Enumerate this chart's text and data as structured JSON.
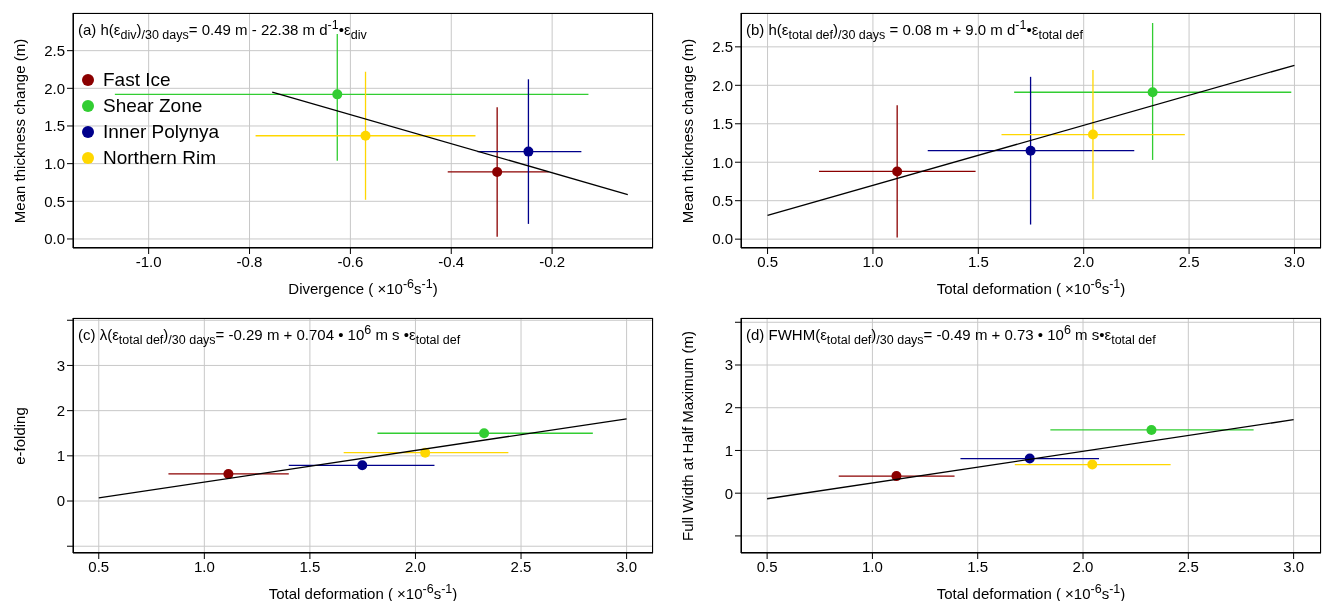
{
  "chart_data": [
    {
      "type": "scatter",
      "title": "(a) h(ε$_{div}$)$_{/30 days}$= 0.49 m - 22.38 m d$^{-1}$•ε$_{div}$",
      "xlabel": "Divergence ( ×10$^{-6}$s$^{-1}$)",
      "ylabel": "Mean thickness change (m)",
      "xlim": [
        -1.15,
        0.0
      ],
      "xticks": [
        {
          "value": -1,
          "label": "-1.0"
        },
        -0.8,
        -0.6,
        -0.4,
        -0.2
      ],
      "ylim": [
        -0.12,
        3.0
      ],
      "yticks": [
        {
          "value": 0,
          "label": "0.0"
        },
        0.5,
        {
          "value": 1,
          "label": "1.0"
        },
        1.5,
        {
          "value": 2,
          "label": "2.0"
        },
        2.5
      ],
      "grid": true,
      "legend": "left",
      "marker": "circle",
      "series": [
        {
          "name": "Fast Ice",
          "color": "#8b0000",
          "x": [
            -0.309
          ],
          "values": [
            0.89
          ],
          "errors": [
            [
              0.03,
              1.75
            ]
          ],
          "xerrors": [
            [
              -0.407,
              -0.207
            ]
          ]
        },
        {
          "name": "Shear Zone",
          "color": "#32cd32",
          "x": [
            -0.626
          ],
          "values": [
            1.92
          ],
          "errors": [
            [
              1.04,
              2.72
            ]
          ],
          "xerrors": [
            [
              -1.067,
              -0.128
            ]
          ]
        },
        {
          "name": "Inner Polynya",
          "color": "#00008b",
          "x": [
            -0.247
          ],
          "values": [
            1.16
          ],
          "errors": [
            [
              0.2,
              2.12
            ]
          ],
          "xerrors": [
            [
              -0.348,
              -0.142
            ]
          ]
        },
        {
          "name": "Northern Rim",
          "color": "#ffd700",
          "x": [
            -0.57
          ],
          "values": [
            1.37
          ],
          "errors": [
            [
              0.52,
              2.22
            ]
          ],
          "xerrors": [
            [
              -0.788,
              -0.352
            ]
          ]
        },
        {
          "type": "line",
          "color": "#000000",
          "x": [
            -0.755,
            -0.05
          ],
          "values": [
            1.95,
            0.59
          ],
          "marker": "none"
        }
      ]
    },
    {
      "type": "scatter",
      "title": "(b) h(ε$_{total def}$)$_{/30 days}$ = 0.08 m + 9.0 m d$^{-1}$•ε$_{total def}$",
      "xlabel": "Total deformation ( ×10$^{-6}$s$^{-1}$)",
      "ylabel": "Mean thickness change (m)",
      "xlim": [
        0.374,
        3.126
      ],
      "xticks": [
        0.5,
        {
          "value": 1,
          "label": "1.0"
        },
        1.5,
        {
          "value": 2,
          "label": "2.0"
        },
        2.5,
        {
          "value": 3,
          "label": "3.0"
        }
      ],
      "ylim": [
        -0.115,
        2.94
      ],
      "yticks": [
        {
          "value": 0,
          "label": "0.0"
        },
        0.5,
        {
          "value": 1,
          "label": "1.0"
        },
        1.5,
        {
          "value": 2,
          "label": "2.0"
        },
        2.5
      ],
      "grid": true,
      "marker": "circle",
      "series": [
        {
          "color": "#8b0000",
          "x": [
            1.115
          ],
          "values": [
            0.88
          ],
          "errors": [
            [
              0.02,
              1.74
            ]
          ],
          "xerrors": [
            [
              0.744,
              1.487
            ]
          ]
        },
        {
          "color": "#32cd32",
          "x": [
            2.327
          ],
          "values": [
            1.91
          ],
          "errors": [
            [
              1.03,
              2.81
            ]
          ],
          "xerrors": [
            [
              1.67,
              2.985
            ]
          ]
        },
        {
          "color": "#00008b",
          "x": [
            1.748
          ],
          "values": [
            1.15
          ],
          "errors": [
            [
              0.19,
              2.11
            ]
          ],
          "xerrors": [
            [
              1.26,
              2.24
            ]
          ]
        },
        {
          "color": "#ffd700",
          "x": [
            2.044
          ],
          "values": [
            1.36
          ],
          "errors": [
            [
              0.52,
              2.2
            ]
          ],
          "xerrors": [
            [
              1.61,
              2.48
            ]
          ]
        },
        {
          "type": "line",
          "color": "#000000",
          "x": [
            0.5,
            3.0
          ],
          "values": [
            0.31,
            2.26
          ],
          "marker": "none"
        }
      ]
    },
    {
      "type": "scatter",
      "title": "(c) λ(ε$_{total def}$)$_{/30 days}$= -0.29 m + 0.704 • 10$^{6}$ m s •ε$_{total def}$",
      "xlabel": "Total deformation ( ×10$^{-6}$s$^{-1}$)",
      "ylabel": "e-folding",
      "xlim": [
        0.378,
        3.125
      ],
      "xticks": [
        0.5,
        {
          "value": 1,
          "label": "1.0"
        },
        1.5,
        {
          "value": 2,
          "label": "2.0"
        },
        2.5,
        {
          "value": 3,
          "label": "3.0"
        }
      ],
      "ylim": [
        -1.15,
        4.05
      ],
      "yticks": [
        {
          "value": -1,
          "label": null
        },
        0,
        1,
        2,
        3,
        {
          "value": 4,
          "label": null
        }
      ],
      "grid": true,
      "marker": "circle",
      "series": [
        {
          "color": "#8b0000",
          "x": [
            1.114
          ],
          "values": [
            0.6
          ],
          "xerrors": [
            [
              0.83,
              1.4
            ]
          ]
        },
        {
          "color": "#32cd32",
          "x": [
            2.325
          ],
          "values": [
            1.5
          ],
          "xerrors": [
            [
              1.82,
              2.84
            ]
          ]
        },
        {
          "color": "#00008b",
          "x": [
            1.748
          ],
          "values": [
            0.79
          ],
          "xerrors": [
            [
              1.4,
              2.09
            ]
          ]
        },
        {
          "color": "#ffd700",
          "x": [
            2.046
          ],
          "values": [
            1.07
          ],
          "xerrors": [
            [
              1.66,
              2.44
            ]
          ]
        },
        {
          "type": "line",
          "color": "#000000",
          "x": [
            0.5,
            3.0
          ],
          "values": [
            0.07,
            1.82
          ],
          "marker": "none"
        }
      ]
    },
    {
      "type": "scatter",
      "title": "(d) FWHM(ε$_{total def}$)$_{/30 days}$= -0.49 m + 0.73 • 10$^{6}$ m s•ε$_{total def}$",
      "xlabel": "Total deformation ( ×10$^{-6}$s$^{-1}$)",
      "ylabel": "Full Width at Half Maximum (m)",
      "xlim": [
        0.376,
        3.13
      ],
      "xticks": [
        0.5,
        {
          "value": 1,
          "label": "1.0"
        },
        1.5,
        {
          "value": 2,
          "label": "2.0"
        },
        2.5,
        {
          "value": 3,
          "label": "3.0"
        }
      ],
      "ylim": [
        -1.4,
        4.1
      ],
      "yticks": [
        {
          "value": -1,
          "label": null
        },
        0,
        1,
        2,
        3,
        {
          "value": 4,
          "label": null
        }
      ],
      "grid": true,
      "marker": "circle",
      "series": [
        {
          "color": "#8b0000",
          "x": [
            1.114
          ],
          "values": [
            0.4
          ],
          "xerrors": [
            [
              0.84,
              1.39
            ]
          ]
        },
        {
          "color": "#32cd32",
          "x": [
            2.325
          ],
          "values": [
            1.48
          ],
          "xerrors": [
            [
              1.845,
              2.81
            ]
          ]
        },
        {
          "color": "#00008b",
          "x": [
            1.747
          ],
          "values": [
            0.81
          ],
          "xerrors": [
            [
              1.418,
              2.076
            ]
          ]
        },
        {
          "color": "#ffd700",
          "x": [
            2.044
          ],
          "values": [
            0.67
          ],
          "xerrors": [
            [
              1.676,
              2.416
            ]
          ]
        },
        {
          "type": "line",
          "color": "#000000",
          "x": [
            0.5,
            3.0
          ],
          "values": [
            -0.13,
            1.72
          ],
          "marker": "none"
        }
      ]
    }
  ]
}
